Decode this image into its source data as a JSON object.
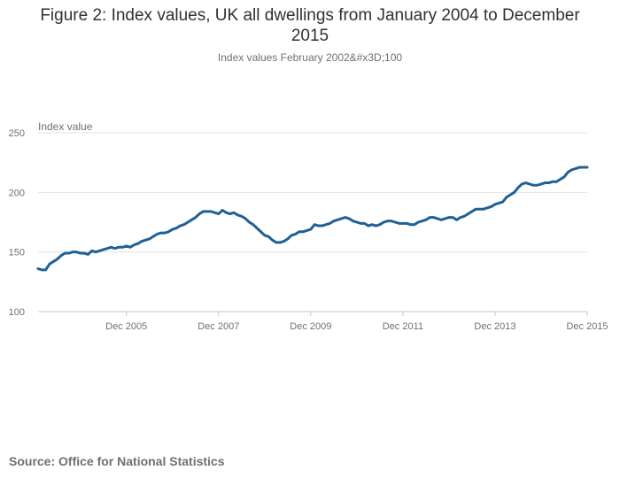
{
  "header": {
    "title_line1": "Figure 2: Index values, UK all dwellings from January 2004 to December",
    "title_line2": "2015",
    "subtitle": "Index values February 2002&#x3D;100"
  },
  "footer": {
    "source": "Source: Office for National Statistics"
  },
  "colors": {
    "line": "#206095",
    "grid": "#e2e2e3",
    "axis_text": "#707071"
  },
  "chart_data": {
    "type": "line",
    "title": "Figure 2: Index values, UK all dwellings from January 2004 to December 2015",
    "subtitle": "Index values February 2002&#x3D;100",
    "ylabel": "Index value",
    "xlabel": "",
    "ylim": [
      100,
      250
    ],
    "yticks": [
      100,
      150,
      200,
      250
    ],
    "x_start": "Jan 2004",
    "x_end": "Dec 2015",
    "x_tick_labels": [
      "Dec 2005",
      "Dec 2007",
      "Dec 2009",
      "Dec 2011",
      "Dec 2013",
      "Dec 2015"
    ],
    "x_tick_months": [
      23,
      47,
      71,
      95,
      119,
      143
    ],
    "grid": true,
    "legend": "none",
    "series": [
      {
        "name": "UK all dwellings",
        "values": [
          136,
          135,
          135,
          140,
          142,
          144,
          147,
          149,
          149,
          150,
          150,
          149,
          149,
          148,
          151,
          150,
          151,
          152,
          153,
          154,
          153,
          154,
          154,
          155,
          154,
          156,
          157,
          159,
          160,
          161,
          163,
          165,
          166,
          166,
          167,
          169,
          170,
          172,
          173,
          175,
          177,
          179,
          182,
          184,
          184,
          184,
          183,
          182,
          185,
          183,
          182,
          183,
          181,
          180,
          178,
          175,
          173,
          170,
          167,
          164,
          163,
          160,
          158,
          158,
          159,
          161,
          164,
          165,
          167,
          167,
          168,
          169,
          173,
          172,
          172,
          173,
          174,
          176,
          177,
          178,
          179,
          178,
          176,
          175,
          174,
          174,
          172,
          173,
          172,
          173,
          175,
          176,
          176,
          175,
          174,
          174,
          174,
          173,
          173,
          175,
          176,
          177,
          179,
          179,
          178,
          177,
          178,
          179,
          179,
          177,
          179,
          180,
          182,
          184,
          186,
          186,
          186,
          187,
          188,
          190,
          191,
          192,
          196,
          198,
          200,
          204,
          207,
          208,
          207,
          206,
          206,
          207,
          208,
          208,
          209,
          209,
          211,
          213,
          217,
          219,
          220,
          221,
          221,
          221
        ]
      }
    ]
  }
}
